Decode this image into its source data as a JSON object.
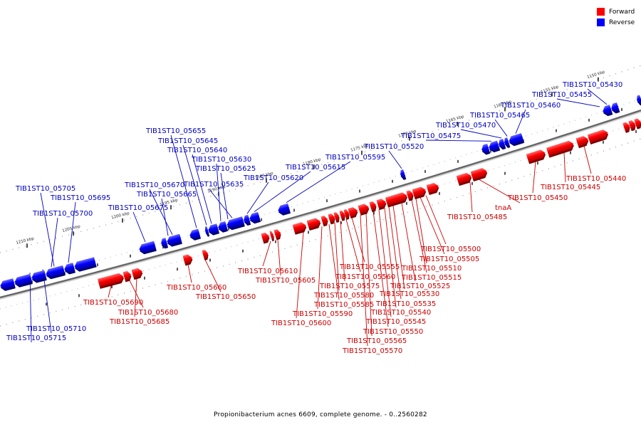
{
  "legend": {
    "forward_label": "Forward",
    "reverse_label": "Reverse",
    "forward_color": "#ff0000",
    "reverse_color": "#0000ff"
  },
  "caption": "Propionibacterium acnes 6609, complete genome. - 0..2560282",
  "scale_labels": [
    "1210 kbp",
    "1205 kbp",
    "1200 kbp",
    "1195 kbp",
    "1190 kbp",
    "1185 kbp",
    "1180 kbp",
    "1175 kbp",
    "1170 kbp",
    "1165 kbp",
    "1160 kbp",
    "1155 kbp",
    "1150 kbp"
  ],
  "reverse_gene_labels": [
    "TIB1ST10_05430",
    "TIB1ST10_05455",
    "TIB1ST10_05460",
    "TIB1ST10_05465",
    "TIB1ST10_05470",
    "TIB1ST10_05475",
    "TIB1ST10_05520",
    "TIB1ST10_05595",
    "TIB1ST10_05615",
    "TIB1ST10_05620",
    "TIB1ST10_05635",
    "TIB1ST10_05625",
    "TIB1ST10_05630",
    "TIB1ST10_05640",
    "TIB1ST10_05645",
    "TIB1ST10_05655",
    "TIB1ST10_05670",
    "TIB1ST10_05665",
    "TIB1ST10_05675",
    "TIB1ST10_05705",
    "TIB1ST10_05695",
    "TIB1ST10_05700",
    "TIB1ST10_05710",
    "TIB1ST10_05715"
  ],
  "forward_gene_labels": [
    "TIB1ST10_05440",
    "TIB1ST10_05445",
    "TIB1ST10_05450",
    "tnaA",
    "TIB1ST10_05485",
    "TIB1ST10_05500",
    "TIB1ST10_05505",
    "TIB1ST10_05510",
    "TIB1ST10_05515",
    "TIB1ST10_05525",
    "TIB1ST10_05530",
    "TIB1ST10_05535",
    "TIB1ST10_05540",
    "TIB1ST10_05545",
    "TIB1ST10_05550",
    "TIB1ST10_05565",
    "TIB1ST10_05570",
    "TIB1ST10_05555",
    "TIB1ST10_05560",
    "TIB1ST10_05575",
    "TIB1ST10_05580",
    "TIB1ST10_05585",
    "TIB1ST10_05590",
    "TIB1ST10_05600",
    "TIB1ST10_05610",
    "TIB1ST10_05605",
    "TIB1ST10_05660",
    "TIB1ST10_05650",
    "TIB1ST10_05690",
    "TIB1ST10_05680",
    "TIB1ST10_05685"
  ]
}
